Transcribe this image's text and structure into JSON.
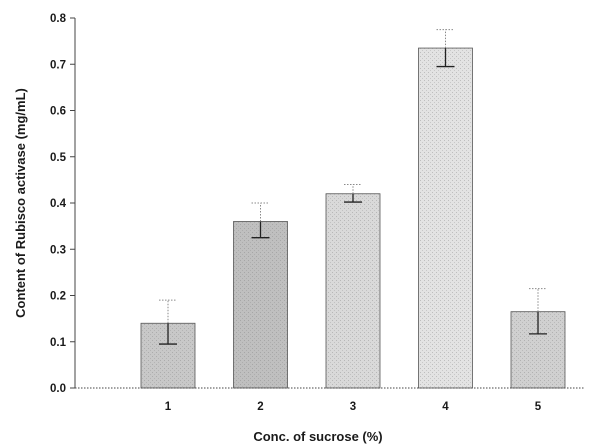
{
  "chart_data": {
    "type": "bar",
    "title": "",
    "xlabel": "Conc. of sucrose (%)",
    "ylabel": "Content of Rubisco activase (mg/mL)",
    "categories": [
      "1",
      "2",
      "3",
      "4",
      "5"
    ],
    "values": [
      0.14,
      0.36,
      0.42,
      0.735,
      0.165
    ],
    "error_lower": [
      0.045,
      0.035,
      0.018,
      0.04,
      0.048
    ],
    "error_upper": [
      0.05,
      0.04,
      0.02,
      0.04,
      0.05
    ],
    "ylim": [
      0.0,
      0.8
    ],
    "yticks": [
      "0.0",
      "0.1",
      "0.2",
      "0.3",
      "0.4",
      "0.5",
      "0.6",
      "0.7",
      "0.8"
    ],
    "grid": false,
    "legend": "none",
    "bar_colors": [
      "#c8c8c8",
      "#bfbfbf",
      "#d9d9d9",
      "#e3e3e3",
      "#d0d0d0"
    ],
    "axis_color": "#444444"
  }
}
